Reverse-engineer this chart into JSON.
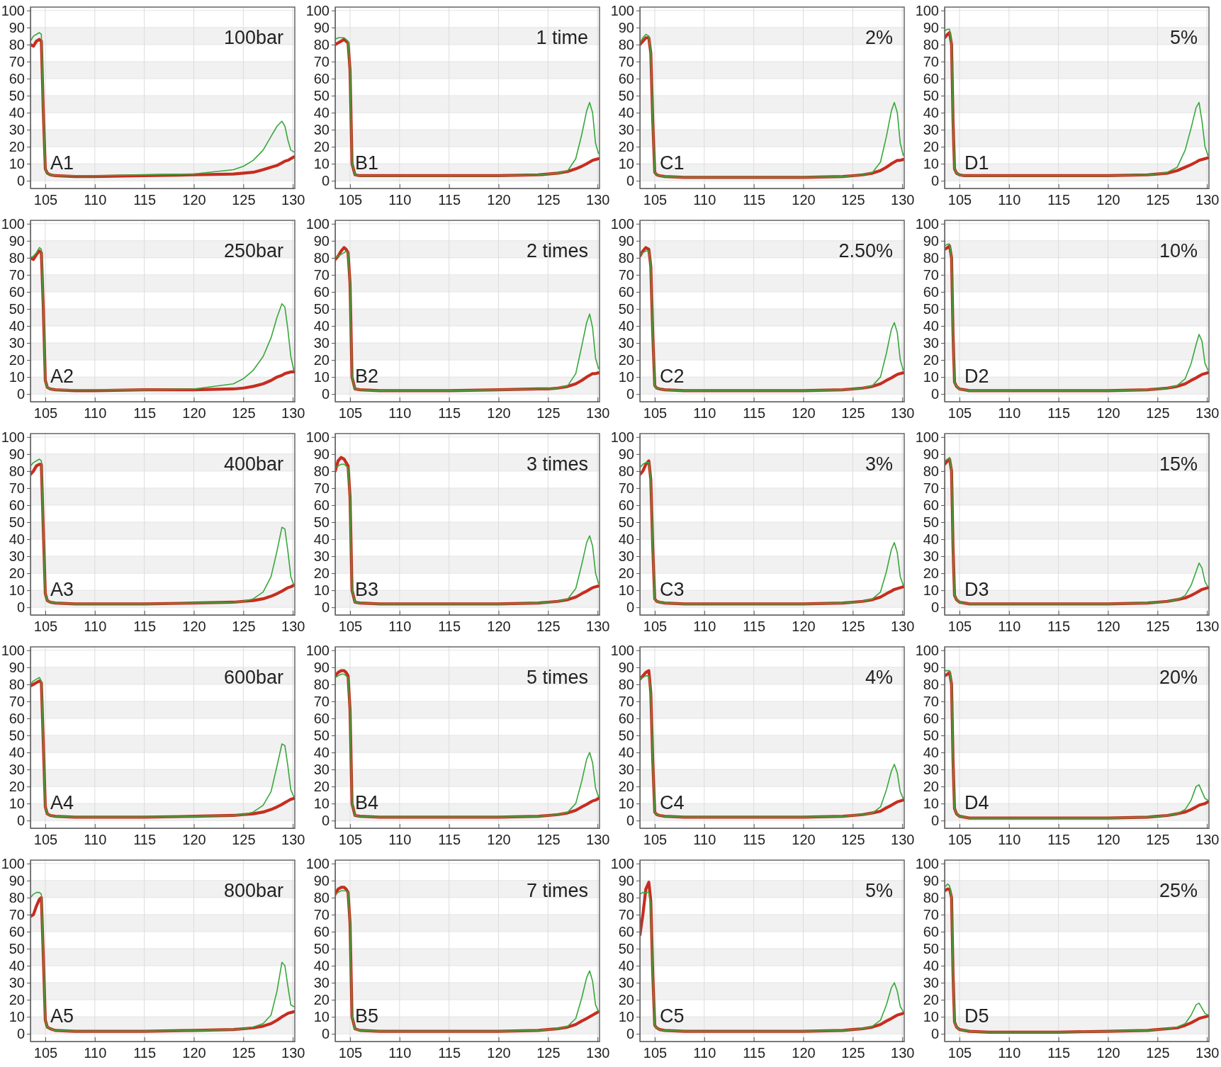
{
  "chart_data": [
    {
      "type": "line",
      "annotations": [
        "100bar",
        "A1"
      ],
      "x": [
        103.5,
        103.8,
        104.1,
        104.4,
        104.6,
        104.8,
        105.0,
        105.2,
        105.5,
        106,
        108,
        110,
        115,
        120,
        124,
        125,
        126,
        127,
        127.8,
        128.4,
        128.9,
        129.2,
        129.5,
        129.8,
        130.1
      ],
      "xlim": [
        103.5,
        130.2
      ],
      "ylim": [
        -4.5,
        102
      ],
      "xticks": [
        105,
        110,
        115,
        120,
        125,
        130
      ],
      "yticks": [
        0,
        10,
        20,
        30,
        40,
        50,
        60,
        70,
        80,
        90,
        100
      ],
      "grid": true,
      "series": [
        {
          "color": "#c62d1f",
          "values": [
            80,
            79,
            82,
            83,
            82,
            40,
            7,
            4.5,
            3.5,
            3,
            2.5,
            2.5,
            3,
            3.5,
            4,
            4.5,
            5,
            6.5,
            8,
            9,
            10.5,
            11.5,
            12,
            13,
            14
          ]
        },
        {
          "color": "#37a83a",
          "values": [
            82,
            85,
            86,
            87,
            86,
            40,
            7,
            4.5,
            3.5,
            3,
            3,
            3,
            3.5,
            4,
            6.5,
            8.5,
            12,
            18,
            26,
            32,
            35,
            32,
            24,
            18,
            17
          ]
        }
      ]
    },
    {
      "type": "line",
      "annotations": [
        "1 time",
        "B1"
      ],
      "x": [
        103.5,
        103.8,
        104.1,
        104.4,
        104.6,
        104.8,
        105.0,
        105.2,
        105.5,
        106,
        108,
        110,
        115,
        120,
        124,
        125,
        126,
        127,
        127.8,
        128.4,
        128.9,
        129.2,
        129.5,
        129.8,
        130.1
      ],
      "xlim": [
        103.5,
        130.2
      ],
      "ylim": [
        -4.5,
        102
      ],
      "xticks": [
        105,
        110,
        115,
        120,
        125,
        130
      ],
      "yticks": [
        0,
        10,
        20,
        30,
        40,
        50,
        60,
        70,
        80,
        90,
        100
      ],
      "grid": true,
      "series": [
        {
          "color": "#c62d1f",
          "values": [
            80,
            81,
            82,
            83,
            82,
            81,
            65,
            10,
            3.5,
            3,
            3,
            3,
            3,
            3,
            3.5,
            4,
            4.5,
            5.5,
            7,
            8.5,
            10,
            11,
            12,
            12.5,
            13
          ]
        },
        {
          "color": "#37a83a",
          "values": [
            83,
            84,
            84,
            84,
            83,
            82,
            65,
            10,
            3.5,
            3,
            3,
            3,
            3,
            3,
            3.5,
            4,
            4.5,
            6,
            13,
            27,
            41,
            46,
            40,
            22,
            16
          ]
        }
      ]
    },
    {
      "type": "line",
      "annotations": [
        "2%",
        "C1"
      ],
      "x": [
        103.5,
        103.8,
        104.1,
        104.4,
        104.6,
        104.8,
        105.0,
        105.2,
        105.5,
        106,
        108,
        110,
        115,
        120,
        124,
        125,
        126,
        127,
        127.8,
        128.4,
        128.9,
        129.2,
        129.5,
        129.8,
        130.1
      ],
      "xlim": [
        103.5,
        130.2
      ],
      "ylim": [
        -4.5,
        102
      ],
      "xticks": [
        105,
        110,
        115,
        120,
        125,
        130
      ],
      "yticks": [
        0,
        10,
        20,
        30,
        40,
        50,
        60,
        70,
        80,
        90,
        100
      ],
      "grid": true,
      "series": [
        {
          "color": "#c62d1f",
          "values": [
            80,
            82,
            84,
            84,
            75,
            35,
            5,
            3.5,
            3,
            2.5,
            2,
            2,
            2,
            2,
            2.5,
            3,
            3.5,
            4.5,
            6,
            8,
            10,
            11,
            12,
            12,
            12.5
          ]
        },
        {
          "color": "#37a83a",
          "values": [
            81,
            84,
            86,
            85,
            75,
            35,
            5,
            3.5,
            3,
            2.5,
            2,
            2,
            2,
            2,
            2.5,
            3,
            3.5,
            5,
            11,
            26,
            41,
            46,
            40,
            22,
            15
          ]
        }
      ]
    },
    {
      "type": "line",
      "annotations": [
        "5%",
        "D1"
      ],
      "x": [
        103.5,
        103.8,
        104.0,
        104.2,
        104.35,
        104.5,
        104.7,
        105,
        105.5,
        106,
        108,
        110,
        115,
        120,
        124,
        125,
        126,
        127,
        127.8,
        128.4,
        128.9,
        129.2,
        129.5,
        129.8,
        130.1
      ],
      "xlim": [
        103.5,
        130.2
      ],
      "ylim": [
        -4.5,
        102
      ],
      "xticks": [
        105,
        110,
        115,
        120,
        125,
        130
      ],
      "yticks": [
        0,
        10,
        20,
        30,
        40,
        50,
        60,
        70,
        80,
        90,
        100
      ],
      "grid": true,
      "series": [
        {
          "color": "#c62d1f",
          "values": [
            84,
            86,
            87,
            80,
            35,
            7,
            4.5,
            3.5,
            3,
            3,
            3,
            3,
            3,
            3,
            3.5,
            4,
            4.5,
            6,
            8,
            9.5,
            11,
            12,
            12.5,
            13,
            13.5
          ]
        },
        {
          "color": "#37a83a",
          "values": [
            88,
            89,
            89,
            80,
            35,
            7,
            4.5,
            3.5,
            3,
            3,
            3,
            3,
            3,
            3,
            3.5,
            4,
            5,
            8,
            18,
            31,
            43,
            46,
            35,
            20,
            15
          ]
        }
      ]
    },
    {
      "type": "line",
      "annotations": [
        "250bar",
        "A2"
      ],
      "x": [
        103.5,
        103.8,
        104.1,
        104.4,
        104.6,
        104.8,
        105.0,
        105.2,
        105.5,
        106,
        108,
        110,
        115,
        120,
        124,
        125,
        126,
        127,
        127.8,
        128.4,
        128.9,
        129.2,
        129.5,
        129.8,
        130.1
      ],
      "xlim": [
        103.5,
        130.2
      ],
      "ylim": [
        -4.5,
        102
      ],
      "xticks": [
        105,
        110,
        115,
        120,
        125,
        130
      ],
      "yticks": [
        0,
        10,
        20,
        30,
        40,
        50,
        60,
        70,
        80,
        90,
        100
      ],
      "grid": true,
      "series": [
        {
          "color": "#c62d1f",
          "values": [
            80,
            79,
            82,
            84,
            83,
            50,
            8,
            4,
            3,
            2.5,
            2,
            2,
            2.5,
            2.5,
            3,
            3.5,
            4.5,
            6,
            8,
            10,
            11,
            12,
            12.5,
            13,
            13
          ]
        },
        {
          "color": "#37a83a",
          "values": [
            80,
            81,
            83,
            86,
            85,
            50,
            8,
            4,
            3,
            2.5,
            2.5,
            2.5,
            2.5,
            3,
            6,
            9,
            14,
            22,
            33,
            45,
            53,
            51,
            38,
            22,
            14
          ]
        }
      ]
    },
    {
      "type": "line",
      "annotations": [
        "2 times",
        "B2"
      ],
      "x": [
        103.5,
        103.8,
        104.1,
        104.4,
        104.6,
        104.8,
        105.0,
        105.2,
        105.5,
        106,
        108,
        110,
        115,
        120,
        124,
        125,
        126,
        127,
        127.8,
        128.4,
        128.9,
        129.2,
        129.5,
        129.8,
        130.1
      ],
      "xlim": [
        103.5,
        130.2
      ],
      "ylim": [
        -4.5,
        102
      ],
      "xticks": [
        105,
        110,
        115,
        120,
        125,
        130
      ],
      "yticks": [
        0,
        10,
        20,
        30,
        40,
        50,
        60,
        70,
        80,
        90,
        100
      ],
      "grid": true,
      "series": [
        {
          "color": "#c62d1f",
          "values": [
            79,
            81,
            84,
            86,
            85,
            83,
            65,
            10,
            3,
            2.5,
            2,
            2,
            2,
            2.5,
            3,
            3,
            3.5,
            4.5,
            6,
            8,
            10,
            11,
            12,
            12,
            12.5
          ]
        },
        {
          "color": "#37a83a",
          "values": [
            80,
            81,
            82,
            83,
            84,
            83,
            65,
            10,
            3,
            2.5,
            2,
            2,
            2,
            2.5,
            3,
            3,
            3.5,
            5,
            12,
            28,
            42,
            47,
            39,
            21,
            15
          ]
        }
      ]
    },
    {
      "type": "line",
      "annotations": [
        "2.50%",
        "C2"
      ],
      "x": [
        103.5,
        103.8,
        104.1,
        104.4,
        104.6,
        104.8,
        105.0,
        105.2,
        105.5,
        106,
        108,
        110,
        115,
        120,
        124,
        125,
        126,
        127,
        127.8,
        128.4,
        128.9,
        129.2,
        129.5,
        129.8,
        130.1
      ],
      "xlim": [
        103.5,
        130.2
      ],
      "ylim": [
        -4.5,
        102
      ],
      "xticks": [
        105,
        110,
        115,
        120,
        125,
        130
      ],
      "yticks": [
        0,
        10,
        20,
        30,
        40,
        50,
        60,
        70,
        80,
        90,
        100
      ],
      "grid": true,
      "series": [
        {
          "color": "#c62d1f",
          "values": [
            81,
            84,
            86,
            85,
            75,
            35,
            5,
            3.5,
            3,
            2.5,
            2,
            2,
            2,
            2,
            2.5,
            3,
            3.5,
            4.5,
            6,
            8,
            9.5,
            10.5,
            11.5,
            12,
            12.5
          ]
        },
        {
          "color": "#37a83a",
          "values": [
            82,
            83,
            84,
            84,
            75,
            35,
            5,
            3.5,
            3,
            2.5,
            2,
            2,
            2,
            2,
            2.5,
            3,
            3.5,
            5,
            10,
            24,
            38,
            42,
            36,
            20,
            14
          ]
        }
      ]
    },
    {
      "type": "line",
      "annotations": [
        "10%",
        "D2"
      ],
      "x": [
        103.5,
        103.8,
        104.0,
        104.2,
        104.35,
        104.5,
        104.7,
        105,
        105.5,
        106,
        108,
        110,
        115,
        120,
        124,
        125,
        126,
        127,
        127.8,
        128.4,
        128.9,
        129.2,
        129.5,
        129.8,
        130.1
      ],
      "xlim": [
        103.5,
        130.2
      ],
      "ylim": [
        -4.5,
        102
      ],
      "xticks": [
        105,
        110,
        115,
        120,
        125,
        130
      ],
      "yticks": [
        0,
        10,
        20,
        30,
        40,
        50,
        60,
        70,
        80,
        90,
        100
      ],
      "grid": true,
      "series": [
        {
          "color": "#c62d1f",
          "values": [
            85,
            86,
            87,
            80,
            35,
            7,
            4.5,
            3,
            2.5,
            2,
            2,
            2,
            2,
            2,
            2.5,
            3,
            3.5,
            4.5,
            6,
            8,
            9.5,
            10.5,
            11.5,
            12,
            12.5
          ]
        },
        {
          "color": "#37a83a",
          "values": [
            87,
            88,
            88,
            80,
            35,
            7,
            4.5,
            3,
            2.5,
            2,
            2,
            2,
            2,
            2,
            2.5,
            3,
            3.5,
            5,
            9,
            18,
            29,
            35,
            31,
            18,
            14
          ]
        }
      ]
    },
    {
      "type": "line",
      "annotations": [
        "400bar",
        "A3"
      ],
      "x": [
        103.5,
        103.8,
        104.1,
        104.4,
        104.6,
        104.8,
        105.0,
        105.2,
        105.5,
        106,
        108,
        110,
        115,
        120,
        124,
        125,
        126,
        127,
        127.8,
        128.4,
        128.9,
        129.2,
        129.5,
        129.8,
        130.1
      ],
      "xlim": [
        103.5,
        130.2
      ],
      "ylim": [
        -4.5,
        102
      ],
      "xticks": [
        105,
        110,
        115,
        120,
        125,
        130
      ],
      "yticks": [
        0,
        10,
        20,
        30,
        40,
        50,
        60,
        70,
        80,
        90,
        100
      ],
      "grid": true,
      "series": [
        {
          "color": "#c62d1f",
          "values": [
            78,
            80,
            83,
            84,
            84,
            45,
            8,
            4,
            3,
            2.5,
            2,
            2,
            2,
            2.5,
            3,
            3.5,
            4,
            5,
            6.5,
            8,
            9.5,
            10.5,
            11.5,
            12,
            13
          ]
        },
        {
          "color": "#37a83a",
          "values": [
            83,
            85,
            86,
            87,
            86,
            45,
            8,
            4,
            3,
            2.5,
            2,
            2,
            2,
            2.5,
            3,
            3.5,
            5,
            9,
            18,
            33,
            47,
            46,
            33,
            18,
            13
          ]
        }
      ]
    },
    {
      "type": "line",
      "annotations": [
        "3 times",
        "B3"
      ],
      "x": [
        103.5,
        103.8,
        104.1,
        104.4,
        104.6,
        104.8,
        105.0,
        105.2,
        105.5,
        106,
        108,
        110,
        115,
        120,
        124,
        125,
        126,
        127,
        127.8,
        128.4,
        128.9,
        129.2,
        129.5,
        129.8,
        130.1
      ],
      "xlim": [
        103.5,
        130.2
      ],
      "ylim": [
        -4.5,
        102
      ],
      "xticks": [
        105,
        110,
        115,
        120,
        125,
        130
      ],
      "yticks": [
        0,
        10,
        20,
        30,
        40,
        50,
        60,
        70,
        80,
        90,
        100
      ],
      "grid": true,
      "series": [
        {
          "color": "#c62d1f",
          "values": [
            80,
            86,
            88,
            87,
            85,
            83,
            65,
            10,
            3,
            2.5,
            2,
            2,
            2,
            2,
            2.5,
            3,
            3.5,
            4.5,
            6,
            8,
            9.5,
            10.5,
            11.5,
            12,
            12.5
          ]
        },
        {
          "color": "#37a83a",
          "values": [
            82,
            83,
            84,
            84,
            83,
            82,
            65,
            10,
            3,
            2.5,
            2,
            2,
            2,
            2,
            2.5,
            3,
            3.5,
            5,
            11,
            25,
            38,
            42,
            36,
            20,
            14
          ]
        }
      ]
    },
    {
      "type": "line",
      "annotations": [
        "3%",
        "C3"
      ],
      "x": [
        103.5,
        103.8,
        104.1,
        104.4,
        104.6,
        104.8,
        105.0,
        105.2,
        105.5,
        106,
        108,
        110,
        115,
        120,
        124,
        125,
        126,
        127,
        127.8,
        128.4,
        128.9,
        129.2,
        129.5,
        129.8,
        130.1
      ],
      "xlim": [
        103.5,
        130.2
      ],
      "ylim": [
        -4.5,
        102
      ],
      "xticks": [
        105,
        110,
        115,
        120,
        125,
        130
      ],
      "yticks": [
        0,
        10,
        20,
        30,
        40,
        50,
        60,
        70,
        80,
        90,
        100
      ],
      "grid": true,
      "series": [
        {
          "color": "#c62d1f",
          "values": [
            78,
            80,
            84,
            86,
            75,
            35,
            5,
            3.5,
            3,
            2.5,
            2,
            2,
            2,
            2,
            2.5,
            3,
            3.5,
            4.5,
            6,
            8,
            9.5,
            10.5,
            11,
            11.5,
            12
          ]
        },
        {
          "color": "#37a83a",
          "values": [
            82,
            84,
            85,
            85,
            75,
            35,
            5,
            3.5,
            3,
            2.5,
            2,
            2,
            2,
            2,
            2.5,
            3,
            3.5,
            5,
            9,
            21,
            34,
            38,
            32,
            18,
            13
          ]
        }
      ]
    },
    {
      "type": "line",
      "annotations": [
        "15%",
        "D3"
      ],
      "x": [
        103.5,
        103.8,
        104.0,
        104.2,
        104.35,
        104.5,
        104.7,
        105,
        105.5,
        106,
        108,
        110,
        115,
        120,
        124,
        125,
        126,
        127,
        127.8,
        128.4,
        128.9,
        129.2,
        129.5,
        129.8,
        130.1
      ],
      "xlim": [
        103.5,
        130.2
      ],
      "ylim": [
        -4.5,
        102
      ],
      "xticks": [
        105,
        110,
        115,
        120,
        125,
        130
      ],
      "yticks": [
        0,
        10,
        20,
        30,
        40,
        50,
        60,
        70,
        80,
        90,
        100
      ],
      "grid": true,
      "series": [
        {
          "color": "#c62d1f",
          "values": [
            84,
            86,
            87,
            80,
            35,
            7,
            4.5,
            3,
            2.5,
            2,
            2,
            2,
            2,
            2,
            2.5,
            3,
            3.5,
            4.5,
            5.5,
            7,
            8.5,
            9.5,
            10.5,
            11,
            11.5
          ]
        },
        {
          "color": "#37a83a",
          "values": [
            86,
            87,
            88,
            80,
            35,
            7,
            4.5,
            3,
            2.5,
            2,
            2,
            2,
            2,
            2,
            2.5,
            3,
            3.5,
            4.5,
            7,
            13,
            21,
            26,
            23,
            15,
            12
          ]
        }
      ]
    },
    {
      "type": "line",
      "annotations": [
        "600bar",
        "A4"
      ],
      "x": [
        103.5,
        103.8,
        104.1,
        104.4,
        104.6,
        104.8,
        105.0,
        105.2,
        105.5,
        106,
        108,
        110,
        115,
        120,
        124,
        125,
        126,
        127,
        127.8,
        128.4,
        128.9,
        129.2,
        129.5,
        129.8,
        130.1
      ],
      "xlim": [
        103.5,
        130.2
      ],
      "ylim": [
        -4.5,
        102
      ],
      "xticks": [
        105,
        110,
        115,
        120,
        125,
        130
      ],
      "yticks": [
        0,
        10,
        20,
        30,
        40,
        50,
        60,
        70,
        80,
        90,
        100
      ],
      "grid": true,
      "series": [
        {
          "color": "#c62d1f",
          "values": [
            79,
            80,
            81,
            82,
            81,
            45,
            8,
            4,
            3,
            2.5,
            2,
            2,
            2,
            2.5,
            3,
            3.5,
            4,
            5,
            6.5,
            8,
            9.5,
            10.5,
            11.5,
            12.5,
            13
          ]
        },
        {
          "color": "#37a83a",
          "values": [
            80,
            82,
            83,
            84,
            82,
            45,
            8,
            4,
            3,
            2.5,
            2,
            2,
            2,
            2.5,
            3,
            3.5,
            5,
            9,
            17,
            32,
            45,
            44,
            32,
            18,
            14
          ]
        }
      ]
    },
    {
      "type": "line",
      "annotations": [
        "5 times",
        "B4"
      ],
      "x": [
        103.5,
        103.8,
        104.1,
        104.4,
        104.6,
        104.8,
        105.0,
        105.2,
        105.5,
        106,
        108,
        110,
        115,
        120,
        124,
        125,
        126,
        127,
        127.8,
        128.4,
        128.9,
        129.2,
        129.5,
        129.8,
        130.1
      ],
      "xlim": [
        103.5,
        130.2
      ],
      "ylim": [
        -4.5,
        102
      ],
      "xticks": [
        105,
        110,
        115,
        120,
        125,
        130
      ],
      "yticks": [
        0,
        10,
        20,
        30,
        40,
        50,
        60,
        70,
        80,
        90,
        100
      ],
      "grid": true,
      "series": [
        {
          "color": "#c62d1f",
          "values": [
            85,
            87,
            88,
            88,
            87,
            85,
            65,
            10,
            3,
            2.5,
            2,
            2,
            2,
            2,
            2.5,
            3,
            3.5,
            4.5,
            6,
            8,
            9.5,
            10.5,
            11.5,
            12,
            13
          ]
        },
        {
          "color": "#37a83a",
          "values": [
            84,
            85,
            86,
            86,
            85,
            84,
            65,
            10,
            3,
            2.5,
            2,
            2,
            2,
            2,
            2.5,
            3,
            3.5,
            5,
            10,
            23,
            36,
            40,
            34,
            19,
            14
          ]
        }
      ]
    },
    {
      "type": "line",
      "annotations": [
        "4%",
        "C4"
      ],
      "x": [
        103.5,
        103.8,
        104.1,
        104.4,
        104.6,
        104.8,
        105.0,
        105.2,
        105.5,
        106,
        108,
        110,
        115,
        120,
        124,
        125,
        126,
        127,
        127.8,
        128.4,
        128.9,
        129.2,
        129.5,
        129.8,
        130.1
      ],
      "xlim": [
        103.5,
        130.2
      ],
      "ylim": [
        -4.5,
        102
      ],
      "xticks": [
        105,
        110,
        115,
        120,
        125,
        130
      ],
      "yticks": [
        0,
        10,
        20,
        30,
        40,
        50,
        60,
        70,
        80,
        90,
        100
      ],
      "grid": true,
      "series": [
        {
          "color": "#c62d1f",
          "values": [
            83,
            85,
            87,
            88,
            75,
            35,
            5,
            3.5,
            3,
            2.5,
            2,
            2,
            2,
            2,
            2.5,
            3,
            3.5,
            4.5,
            5.5,
            7.5,
            9,
            10,
            11,
            11.5,
            12
          ]
        },
        {
          "color": "#37a83a",
          "values": [
            83,
            84,
            85,
            85,
            75,
            35,
            5,
            3.5,
            3,
            2.5,
            2,
            2,
            2,
            2,
            2.5,
            3,
            3.5,
            4.5,
            8,
            18,
            29,
            33,
            28,
            17,
            13
          ]
        }
      ]
    },
    {
      "type": "line",
      "annotations": [
        "20%",
        "D4"
      ],
      "x": [
        103.5,
        103.8,
        104.0,
        104.2,
        104.35,
        104.5,
        104.7,
        105,
        105.5,
        106,
        108,
        110,
        115,
        120,
        124,
        125,
        126,
        127,
        127.8,
        128.4,
        128.9,
        129.2,
        129.5,
        129.8,
        130.1
      ],
      "xlim": [
        103.5,
        130.2
      ],
      "ylim": [
        -4.5,
        102
      ],
      "xticks": [
        105,
        110,
        115,
        120,
        125,
        130
      ],
      "yticks": [
        0,
        10,
        20,
        30,
        40,
        50,
        60,
        70,
        80,
        90,
        100
      ],
      "grid": true,
      "series": [
        {
          "color": "#c62d1f",
          "values": [
            85,
            86,
            87,
            80,
            35,
            7,
            4,
            2.5,
            2,
            1.5,
            1.5,
            1.5,
            1.5,
            1.5,
            2,
            2.5,
            3,
            4,
            5,
            6.5,
            8,
            9,
            9.5,
            10,
            11
          ]
        },
        {
          "color": "#37a83a",
          "values": [
            88,
            88,
            88,
            80,
            35,
            7,
            4,
            2.5,
            2,
            1.5,
            1.5,
            1.5,
            1.5,
            1.5,
            2,
            2.5,
            3,
            4,
            6.5,
            12,
            20,
            21,
            17,
            13,
            12
          ]
        }
      ]
    },
    {
      "type": "line",
      "annotations": [
        "800bar",
        "A5"
      ],
      "x": [
        103.5,
        103.8,
        104.1,
        104.4,
        104.6,
        104.8,
        105.0,
        105.2,
        105.5,
        106,
        108,
        110,
        115,
        120,
        124,
        125,
        126,
        127,
        127.8,
        128.4,
        128.9,
        129.2,
        129.5,
        129.8,
        130.1
      ],
      "xlim": [
        103.5,
        130.2
      ],
      "ylim": [
        -4.5,
        102
      ],
      "xticks": [
        105,
        110,
        115,
        120,
        125,
        130
      ],
      "yticks": [
        0,
        10,
        20,
        30,
        40,
        50,
        60,
        70,
        80,
        90,
        100
      ],
      "grid": true,
      "series": [
        {
          "color": "#c62d1f",
          "values": [
            69,
            70,
            75,
            79,
            80,
            45,
            8,
            4,
            3,
            2,
            1.5,
            1.5,
            1.5,
            2,
            2.5,
            3,
            3.5,
            4.5,
            6,
            8,
            10,
            11,
            12,
            12.5,
            13
          ]
        },
        {
          "color": "#37a83a",
          "values": [
            80,
            82,
            83,
            83,
            82,
            45,
            8,
            4,
            3,
            2,
            1.5,
            1.5,
            1.5,
            2,
            2.5,
            3,
            4,
            6,
            11,
            25,
            42,
            40,
            28,
            17,
            16
          ]
        }
      ]
    },
    {
      "type": "line",
      "annotations": [
        "7 times",
        "B5"
      ],
      "x": [
        103.5,
        103.8,
        104.1,
        104.4,
        104.6,
        104.8,
        105.0,
        105.2,
        105.5,
        106,
        108,
        110,
        115,
        120,
        124,
        125,
        126,
        127,
        127.8,
        128.4,
        128.9,
        129.2,
        129.5,
        129.8,
        130.1
      ],
      "xlim": [
        103.5,
        130.2
      ],
      "ylim": [
        -4.5,
        102
      ],
      "xticks": [
        105,
        110,
        115,
        120,
        125,
        130
      ],
      "yticks": [
        0,
        10,
        20,
        30,
        40,
        50,
        60,
        70,
        80,
        90,
        100
      ],
      "grid": true,
      "series": [
        {
          "color": "#c62d1f",
          "values": [
            82,
            85,
            86,
            86,
            85,
            83,
            65,
            10,
            3,
            2,
            1.5,
            1.5,
            1.5,
            1.5,
            2,
            2.5,
            3,
            4,
            5.5,
            7.5,
            9,
            10,
            11,
            12,
            13
          ]
        },
        {
          "color": "#37a83a",
          "values": [
            82,
            83,
            84,
            84,
            84,
            83,
            65,
            10,
            3,
            2,
            1.5,
            1.5,
            1.5,
            1.5,
            2,
            2.5,
            3,
            4.5,
            9,
            21,
            33,
            37,
            31,
            17,
            13
          ]
        }
      ]
    },
    {
      "type": "line",
      "annotations": [
        "5%",
        "C5"
      ],
      "x": [
        103.5,
        103.8,
        104.1,
        104.4,
        104.6,
        104.8,
        105.0,
        105.2,
        105.5,
        106,
        108,
        110,
        115,
        120,
        124,
        125,
        126,
        127,
        127.8,
        128.4,
        128.9,
        129.2,
        129.5,
        129.8,
        130.1
      ],
      "xlim": [
        103.5,
        130.2
      ],
      "ylim": [
        -4.5,
        102
      ],
      "xticks": [
        105,
        110,
        115,
        120,
        125,
        130
      ],
      "yticks": [
        0,
        10,
        20,
        30,
        40,
        50,
        60,
        70,
        80,
        90,
        100
      ],
      "grid": true,
      "series": [
        {
          "color": "#c62d1f",
          "values": [
            58,
            70,
            85,
            89,
            78,
            35,
            5,
            3.5,
            2.5,
            2,
            1.5,
            1.5,
            1.5,
            1.5,
            2,
            2.5,
            3,
            4,
            5.5,
            7.5,
            9,
            10,
            11,
            11.5,
            12
          ]
        },
        {
          "color": "#37a83a",
          "values": [
            82,
            83,
            83,
            83,
            75,
            35,
            5,
            3.5,
            2.5,
            2,
            1.5,
            1.5,
            1.5,
            1.5,
            2,
            2.5,
            3,
            4.5,
            8,
            17,
            27,
            30,
            25,
            16,
            13
          ]
        }
      ]
    },
    {
      "type": "line",
      "annotations": [
        "25%",
        "D5"
      ],
      "x": [
        103.5,
        103.8,
        104.0,
        104.2,
        104.35,
        104.5,
        104.7,
        105,
        105.5,
        106,
        108,
        110,
        115,
        120,
        124,
        125,
        126,
        127,
        127.8,
        128.4,
        128.9,
        129.2,
        129.5,
        129.8,
        130.1
      ],
      "xlim": [
        103.5,
        130.2
      ],
      "ylim": [
        -4.5,
        102
      ],
      "xticks": [
        105,
        110,
        115,
        120,
        125,
        130
      ],
      "yticks": [
        0,
        10,
        20,
        30,
        40,
        50,
        60,
        70,
        80,
        90,
        100
      ],
      "grid": true,
      "series": [
        {
          "color": "#c62d1f",
          "values": [
            84,
            85,
            85,
            80,
            35,
            7,
            4,
            2.5,
            2,
            1.5,
            1,
            1,
            1,
            1.5,
            2,
            2.5,
            3,
            3.5,
            5,
            6.5,
            8,
            9,
            9.5,
            10,
            10.5
          ]
        },
        {
          "color": "#37a83a",
          "values": [
            86,
            88,
            87,
            80,
            35,
            7,
            4,
            2.5,
            2,
            1.5,
            1,
            1,
            1,
            1.5,
            2,
            2.5,
            3,
            4,
            6,
            11,
            17,
            18,
            15,
            12,
            11
          ]
        }
      ]
    }
  ]
}
